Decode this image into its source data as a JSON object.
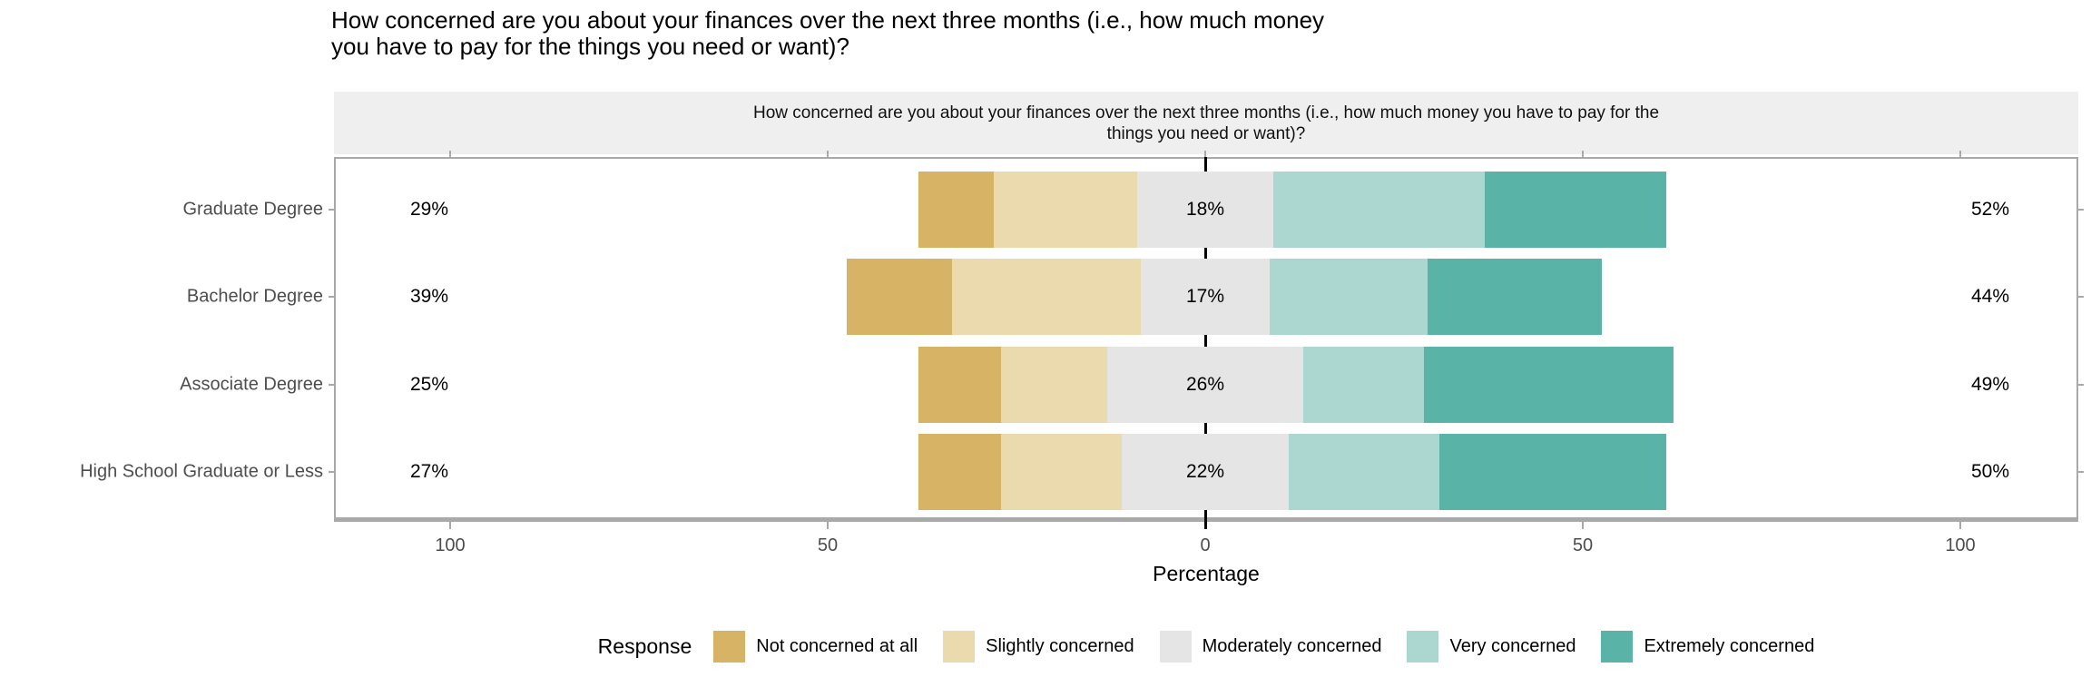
{
  "title": {
    "line1": "How concerned are you about your finances over the next three months (i.e., how much money",
    "line2": "you have to pay for the things you need or want)?"
  },
  "facet": {
    "line1": "How concerned are you about your finances over the next three months (i.e., how much money you have to pay for the",
    "line2": "things you need or want)?"
  },
  "chart_data": {
    "type": "diverging-stacked-bar",
    "categories": [
      "Graduate Degree",
      "Bachelor Degree",
      "Associate Degree",
      "High School Graduate or Less"
    ],
    "series": [
      {
        "name": "Not concerned at all",
        "color": "#D7B365",
        "values": [
          10,
          14,
          11,
          11
        ]
      },
      {
        "name": "Slightly concerned",
        "color": "#EADAAD",
        "values": [
          19,
          25,
          14,
          16
        ]
      },
      {
        "name": "Moderately concerned",
        "color": "#E5E5E5",
        "values": [
          18,
          17,
          26,
          22
        ]
      },
      {
        "name": "Very concerned",
        "color": "#ACD7D0",
        "values": [
          28,
          21,
          16,
          20
        ]
      },
      {
        "name": "Extremely concerned",
        "color": "#5AB3A7",
        "values": [
          24,
          23,
          33,
          30
        ]
      }
    ],
    "summary_labels": {
      "low": [
        "29%",
        "39%",
        "25%",
        "27%"
      ],
      "mid": [
        "18%",
        "17%",
        "26%",
        "22%"
      ],
      "high": [
        "52%",
        "44%",
        "49%",
        "50%"
      ]
    },
    "x_axis": {
      "tick_labels": [
        "100",
        "50",
        "0",
        "50",
        "100"
      ],
      "tick_values": [
        -100,
        -50,
        0,
        50,
        100
      ],
      "label": "Percentage",
      "xlim": [
        -115.5,
        115.5
      ]
    },
    "legend": {
      "title": "Response",
      "entries": [
        "Not concerned at all",
        "Slightly concerned",
        "Moderately concerned",
        "Very concerned",
        "Extremely concerned"
      ]
    },
    "style": {
      "zero_line_color": "#000000",
      "panel_border_color": "#a9a9a9",
      "strip_background": "#efefef",
      "axis_text_color": "#4d4d4d"
    }
  }
}
